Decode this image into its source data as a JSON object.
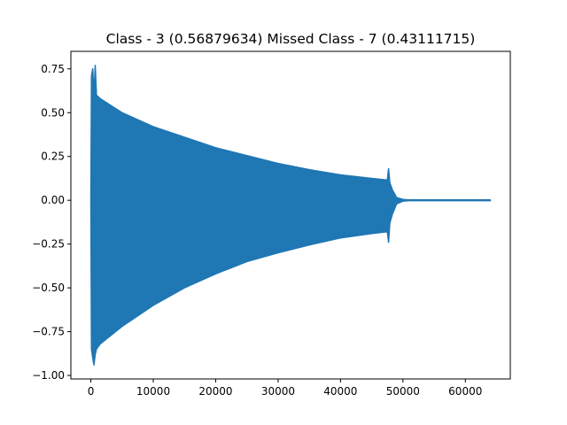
{
  "chart_data": {
    "type": "line",
    "title": "Class - 3 (0.56879634) Missed Class - 7 (0.43111715)",
    "xlabel": "",
    "ylabel": "",
    "xlim": [
      -3200,
      67200
    ],
    "ylim": [
      -1.02,
      0.85
    ],
    "grid": false,
    "series_color": "#1f77b4",
    "x_ticks": [
      {
        "value": 0,
        "label": "0"
      },
      {
        "value": 10000,
        "label": "10000"
      },
      {
        "value": 20000,
        "label": "20000"
      },
      {
        "value": 30000,
        "label": "30000"
      },
      {
        "value": 40000,
        "label": "40000"
      },
      {
        "value": 50000,
        "label": "50000"
      },
      {
        "value": 60000,
        "label": "60000"
      }
    ],
    "y_ticks": [
      {
        "value": 0.75,
        "label": "0.75"
      },
      {
        "value": 0.5,
        "label": "0.50"
      },
      {
        "value": 0.25,
        "label": "0.25"
      },
      {
        "value": 0.0,
        "label": "0.00"
      },
      {
        "value": -0.25,
        "label": "−0.25"
      },
      {
        "value": -0.5,
        "label": "−0.50"
      },
      {
        "value": -0.75,
        "label": "−0.75"
      },
      {
        "value": -1.0,
        "label": "−1.00"
      }
    ],
    "series": [
      {
        "upper_envelope": [
          [
            0,
            0.0
          ],
          [
            100,
            0.71
          ],
          [
            300,
            0.75
          ],
          [
            500,
            0.6
          ],
          [
            700,
            0.77
          ],
          [
            900,
            0.6
          ],
          [
            1500,
            0.58
          ],
          [
            5000,
            0.5
          ],
          [
            10000,
            0.42
          ],
          [
            15000,
            0.36
          ],
          [
            20000,
            0.3
          ],
          [
            25000,
            0.255
          ],
          [
            30000,
            0.21
          ],
          [
            35000,
            0.175
          ],
          [
            40000,
            0.145
          ],
          [
            45000,
            0.125
          ],
          [
            47500,
            0.115
          ],
          [
            47700,
            0.18
          ],
          [
            47900,
            0.1
          ],
          [
            48300,
            0.06
          ],
          [
            49000,
            0.015
          ],
          [
            50000,
            0.005
          ],
          [
            51000,
            0.002
          ],
          [
            64000,
            0.002
          ]
        ],
        "lower_envelope": [
          [
            0,
            0.0
          ],
          [
            100,
            -0.85
          ],
          [
            300,
            -0.9
          ],
          [
            500,
            -0.94
          ],
          [
            700,
            -0.88
          ],
          [
            900,
            -0.85
          ],
          [
            1500,
            -0.82
          ],
          [
            5000,
            -0.72
          ],
          [
            10000,
            -0.6
          ],
          [
            15000,
            -0.5
          ],
          [
            20000,
            -0.42
          ],
          [
            25000,
            -0.35
          ],
          [
            30000,
            -0.3
          ],
          [
            35000,
            -0.255
          ],
          [
            40000,
            -0.215
          ],
          [
            45000,
            -0.19
          ],
          [
            47500,
            -0.18
          ],
          [
            47700,
            -0.24
          ],
          [
            47900,
            -0.13
          ],
          [
            48300,
            -0.08
          ],
          [
            49000,
            -0.02
          ],
          [
            50000,
            -0.005
          ],
          [
            51000,
            -0.002
          ],
          [
            64000,
            -0.002
          ]
        ]
      }
    ]
  }
}
